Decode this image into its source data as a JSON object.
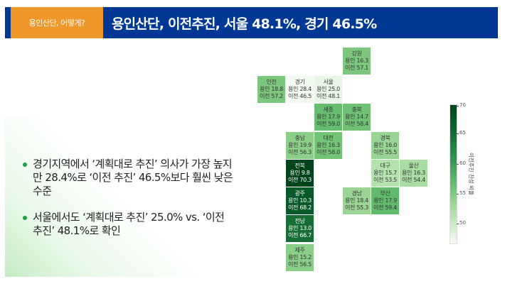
{
  "header": {
    "tag": "용인산단, 어떻게?",
    "title": "용인산단, 이전추진, 서울 48.1%, 경기 46.5%"
  },
  "bullets": [
    "경기지역에서 ‘계획대로 추진’ 의사가 가장 높지만 28.4%로 ‘이전 추진’ 46.5%보다 훨씬 낮은 수준",
    "서울에서도 ‘계획대로 추진’ 25.0% vs. ‘이전 추진’ 48.1%로 확인"
  ],
  "colors": {
    "header_blue": "#003893",
    "header_orange": "#f0972a",
    "bullet_green": "#1aa23c"
  },
  "map": {
    "regions": [
      {
        "name": "강원",
        "yongin_label": "용인 16.3",
        "ijeon_label": "이전 57.1",
        "yongin": 16.3,
        "ijeon": 57.1,
        "col": 3,
        "row": 0,
        "color": "#7dc87e"
      },
      {
        "name": "인천",
        "yongin_label": "용인 18.8",
        "ijeon_label": "이전 57.2",
        "yongin": 18.8,
        "ijeon": 57.2,
        "col": 0,
        "row": 1,
        "color": "#7cc77d"
      },
      {
        "name": "경기",
        "yongin_label": "용인 28.4",
        "ijeon_label": "이전 46.5",
        "yongin": 28.4,
        "ijeon": 46.5,
        "col": 1,
        "row": 1,
        "color": "#f4fbf2"
      },
      {
        "name": "서울",
        "yongin_label": "용인 25.0",
        "ijeon_label": "이전 48.1",
        "yongin": 25.0,
        "ijeon": 48.1,
        "col": 2,
        "row": 1,
        "color": "#eaf7e6"
      },
      {
        "name": "세종",
        "yongin_label": "용인 17.9",
        "ijeon_label": "이전 59.0",
        "yongin": 17.9,
        "ijeon": 59.0,
        "col": 2,
        "row": 2,
        "color": "#66bd6f"
      },
      {
        "name": "충북",
        "yongin_label": "용인 14.7",
        "ijeon_label": "이전 58.4",
        "yongin": 14.7,
        "ijeon": 58.4,
        "col": 3,
        "row": 2,
        "color": "#70c174"
      },
      {
        "name": "충남",
        "yongin_label": "용인 19.9",
        "ijeon_label": "이전 56.3",
        "yongin": 19.9,
        "ijeon": 56.3,
        "col": 1,
        "row": 3,
        "color": "#8ccf89"
      },
      {
        "name": "대전",
        "yongin_label": "용인 16.3",
        "ijeon_label": "이전 58.0",
        "yongin": 16.3,
        "ijeon": 58.0,
        "col": 2,
        "row": 3,
        "color": "#74c476"
      },
      {
        "name": "경북",
        "yongin_label": "용인 16.0",
        "ijeon_label": "이전 55.5",
        "yongin": 16.0,
        "ijeon": 55.5,
        "col": 4,
        "row": 3,
        "color": "#98d493"
      },
      {
        "name": "전북",
        "yongin_label": "용인 9.8",
        "ijeon_label": "이전 70.3",
        "yongin": 9.8,
        "ijeon": 70.3,
        "col": 1,
        "row": 4,
        "color": "#00441b",
        "dark": true
      },
      {
        "name": "대구",
        "yongin_label": "용인 15.7",
        "ijeon_label": "이전 53.5",
        "yongin": 15.7,
        "ijeon": 53.5,
        "col": 4,
        "row": 4,
        "color": "#b6e2b0"
      },
      {
        "name": "울산",
        "yongin_label": "용인 16.3",
        "ijeon_label": "이전 54.4",
        "yongin": 16.3,
        "ijeon": 54.4,
        "col": 5,
        "row": 4,
        "color": "#a9dda3"
      },
      {
        "name": "광주",
        "yongin_label": "용인 10.3",
        "ijeon_label": "이전 68.2",
        "yongin": 10.3,
        "ijeon": 68.2,
        "col": 1,
        "row": 5,
        "color": "#08592a",
        "dark": true
      },
      {
        "name": "경남",
        "yongin_label": "용인 18.4",
        "ijeon_label": "이전 55.3",
        "yongin": 18.4,
        "ijeon": 55.3,
        "col": 3,
        "row": 5,
        "color": "#9bd595"
      },
      {
        "name": "부산",
        "yongin_label": "용인 17.9",
        "ijeon_label": "이전 59.4",
        "yongin": 17.9,
        "ijeon": 59.4,
        "col": 4,
        "row": 5,
        "color": "#62bb6d"
      },
      {
        "name": "전남",
        "yongin_label": "용인 13.0",
        "ijeon_label": "이전 66.7",
        "yongin": 13.0,
        "ijeon": 66.7,
        "col": 1,
        "row": 6,
        "color": "#176e34",
        "dark": true
      },
      {
        "name": "제주",
        "yongin_label": "용인 15.2",
        "ijeon_label": "이전 56.5",
        "yongin": 15.2,
        "ijeon": 56.5,
        "col": 1,
        "row": 7,
        "color": "#8acf87"
      }
    ],
    "colorbar": {
      "label": "이전추진 찬성 비율",
      "ticks": [
        "70",
        "65",
        "60",
        "55",
        "50"
      ],
      "min": 47,
      "max": 70.3
    }
  },
  "chart_data": {
    "type": "heatmap",
    "title": "용인산단, 이전추진, 서울 48.1%, 경기 46.5%",
    "colorbar_label": "이전추진 찬성 비율",
    "colorbar_ticks": [
      50,
      55,
      60,
      65,
      70
    ],
    "categories": [
      "강원",
      "인천",
      "경기",
      "서울",
      "세종",
      "충북",
      "충남",
      "대전",
      "경북",
      "전북",
      "대구",
      "울산",
      "광주",
      "경남",
      "부산",
      "전남",
      "제주"
    ],
    "series": [
      {
        "name": "용인",
        "values": [
          16.3,
          18.8,
          28.4,
          25.0,
          17.9,
          14.7,
          19.9,
          16.3,
          16.0,
          9.8,
          15.7,
          16.3,
          10.3,
          18.4,
          17.9,
          13.0,
          15.2
        ]
      },
      {
        "name": "이전",
        "values": [
          57.1,
          57.2,
          46.5,
          48.1,
          59.0,
          58.4,
          56.3,
          58.0,
          55.5,
          70.3,
          53.5,
          54.4,
          68.2,
          55.3,
          59.4,
          66.7,
          56.5
        ]
      }
    ]
  }
}
